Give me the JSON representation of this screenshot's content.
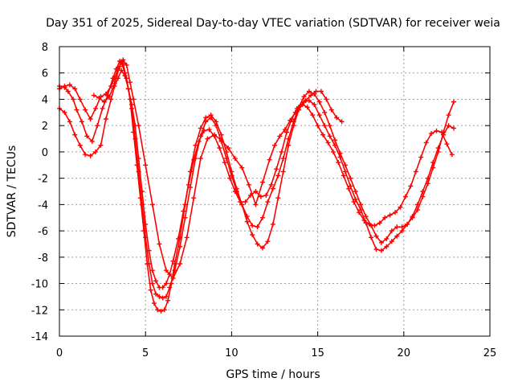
{
  "chart_data": {
    "type": "scatter",
    "title": "Day 351 of 2025, Sidereal Day-to-day VTEC variation (SDTVAR) for receiver weia",
    "xlabel": "GPS time / hours",
    "ylabel": "SDTVAR / TECUs",
    "xlim": [
      0,
      25
    ],
    "ylim": [
      -14,
      8
    ],
    "xticks": [
      0,
      5,
      10,
      15,
      20,
      25
    ],
    "yticks": [
      -14,
      -12,
      -10,
      -8,
      -6,
      -4,
      -2,
      0,
      2,
      4,
      6,
      8
    ],
    "grid": true,
    "marker": "+",
    "color": "#ff0000",
    "series": [
      {
        "name": "track-1",
        "x": [
          0.0,
          0.3,
          0.5,
          0.8,
          1.0,
          1.3,
          1.6,
          1.9,
          2.2,
          2.5,
          2.8,
          3.1,
          3.3,
          3.5,
          3.7,
          3.9,
          4.1,
          4.3,
          4.5,
          4.7,
          4.9,
          5.1,
          5.3,
          5.5,
          5.7,
          5.9,
          6.1,
          6.3,
          6.5,
          6.7,
          7.0,
          7.3,
          7.6,
          7.9,
          8.2,
          8.5,
          8.8,
          9.1,
          9.4,
          9.7,
          10.0,
          10.3,
          10.6,
          10.9,
          11.2,
          11.5,
          11.8,
          12.1,
          12.4,
          12.7,
          13.0,
          13.3,
          13.6,
          13.9,
          14.2,
          14.5,
          14.8,
          15.1,
          15.4,
          15.7,
          16.0,
          16.3,
          16.6,
          16.9,
          17.2,
          17.5,
          17.8,
          18.1,
          18.4,
          18.7,
          19.0,
          19.3,
          19.6,
          19.9,
          20.2,
          20.5,
          20.8,
          21.1,
          21.4,
          21.7,
          22.0,
          22.3,
          22.6,
          22.9
        ],
        "values": [
          5.0,
          4.9,
          4.6,
          4.0,
          3.2,
          2.3,
          1.2,
          0.8,
          2.0,
          3.3,
          4.3,
          5.6,
          6.3,
          6.9,
          6.7,
          5.6,
          4.0,
          1.5,
          -1.0,
          -3.5,
          -6.0,
          -8.5,
          -10.5,
          -11.5,
          -12.0,
          -12.1,
          -12.0,
          -11.3,
          -10.0,
          -8.5,
          -6.5,
          -4.0,
          -1.5,
          0.5,
          1.8,
          2.6,
          2.8,
          2.3,
          1.3,
          0.0,
          -1.5,
          -2.8,
          -4.0,
          -5.3,
          -6.3,
          -7.0,
          -7.3,
          -6.8,
          -5.5,
          -3.5,
          -1.5,
          0.5,
          2.0,
          3.2,
          3.8,
          3.9,
          3.6,
          2.8,
          2.0,
          1.2,
          0.5,
          -0.4,
          -1.5,
          -2.6,
          -3.6,
          -4.4,
          -5.4,
          -6.5,
          -7.4,
          -7.5,
          -7.2,
          -6.8,
          -6.4,
          -6.0,
          -5.5,
          -5.0,
          -4.4,
          -3.4,
          -2.4,
          -1.2,
          0.0,
          1.5,
          2.8,
          3.8
        ]
      },
      {
        "name": "track-2",
        "x": [
          0.0,
          0.3,
          0.6,
          0.9,
          1.2,
          1.5,
          1.8,
          2.1,
          2.4,
          2.7,
          3.0,
          3.2,
          3.4,
          3.6,
          3.8,
          4.0,
          4.2,
          4.4,
          4.6,
          4.8,
          5.0,
          5.2,
          5.4,
          5.6,
          5.8,
          6.0,
          6.2,
          6.4,
          6.7,
          7.0,
          7.3,
          7.6,
          7.9,
          8.2,
          8.5,
          8.8,
          9.1,
          9.4,
          9.7,
          10.0,
          10.3,
          10.6,
          10.9,
          11.2,
          11.5,
          11.8,
          12.1,
          12.4,
          12.7,
          13.0,
          13.3,
          13.6,
          13.9,
          14.2,
          14.5,
          14.8,
          15.1,
          15.4,
          15.7,
          16.0,
          16.3,
          16.6,
          16.9,
          17.2,
          17.5,
          17.8,
          18.1,
          18.4,
          18.7,
          19.0,
          19.3,
          19.6,
          19.9,
          20.2,
          20.5,
          20.8,
          21.1,
          21.4,
          21.7,
          22.0,
          22.3,
          22.6,
          22.9
        ],
        "values": [
          4.8,
          5.0,
          5.1,
          4.8,
          4.0,
          3.2,
          2.5,
          3.3,
          4.2,
          4.4,
          5.0,
          5.6,
          6.3,
          6.8,
          6.0,
          4.8,
          3.3,
          1.0,
          -1.5,
          -4.0,
          -6.5,
          -8.5,
          -10.0,
          -10.8,
          -11.0,
          -11.1,
          -11.0,
          -10.3,
          -9.0,
          -7.2,
          -5.0,
          -2.7,
          -0.5,
          1.2,
          2.3,
          2.6,
          2.0,
          0.8,
          -0.5,
          -1.8,
          -3.0,
          -4.0,
          -4.9,
          -5.6,
          -5.7,
          -5.0,
          -3.8,
          -2.8,
          -1.8,
          -0.5,
          1.0,
          2.3,
          3.4,
          4.2,
          4.6,
          4.4,
          3.8,
          3.0,
          2.0,
          0.9,
          -0.1,
          -1.0,
          -2.0,
          -3.0,
          -4.0,
          -4.9,
          -5.6,
          -6.4,
          -6.9,
          -6.6,
          -6.0,
          -5.7,
          -5.7,
          -5.5,
          -4.9,
          -4.0,
          -3.0,
          -2.0,
          -0.8,
          0.3,
          1.3,
          2.0,
          1.8
        ]
      },
      {
        "name": "track-3",
        "x": [
          0.0,
          0.3,
          0.6,
          0.9,
          1.2,
          1.5,
          1.8,
          2.1,
          2.4,
          2.7,
          3.0,
          3.2,
          3.4,
          3.6,
          3.8,
          4.0,
          4.2,
          4.4,
          4.6,
          4.8,
          5.0,
          5.2,
          5.4,
          5.6,
          5.8,
          6.0,
          6.2,
          6.4,
          6.6,
          6.9,
          7.2,
          7.5,
          7.8,
          8.1,
          8.4,
          8.7,
          9.0,
          9.3,
          9.6,
          9.9,
          10.2,
          10.5,
          10.8,
          11.1,
          11.4,
          11.7,
          12.0,
          12.3,
          12.6,
          12.9,
          13.2,
          13.5,
          13.8,
          14.1,
          14.4,
          14.7,
          15.0,
          15.3,
          15.6,
          15.9,
          16.2,
          16.5,
          16.8,
          17.1,
          17.4,
          17.7,
          18.0,
          18.3,
          18.6,
          18.9,
          19.2,
          19.5,
          19.8,
          20.1,
          20.4,
          20.7,
          21.0,
          21.3,
          21.6,
          21.9,
          22.2,
          22.5,
          22.8
        ],
        "values": [
          3.3,
          3.0,
          2.3,
          1.3,
          0.5,
          -0.2,
          -0.3,
          0.0,
          0.5,
          2.5,
          4.0,
          5.0,
          5.6,
          6.2,
          5.8,
          4.8,
          3.6,
          2.0,
          -0.5,
          -3.0,
          -5.5,
          -7.5,
          -9.0,
          -9.8,
          -10.3,
          -10.3,
          -10.0,
          -9.3,
          -8.3,
          -6.6,
          -4.5,
          -2.5,
          -0.6,
          0.8,
          1.6,
          1.7,
          1.2,
          0.3,
          -0.8,
          -2.0,
          -3.0,
          -3.8,
          -3.8,
          -3.3,
          -3.0,
          -3.4,
          -3.3,
          -2.5,
          -1.3,
          0.0,
          1.5,
          2.5,
          3.3,
          3.6,
          3.4,
          2.8,
          2.0,
          1.3,
          0.7,
          0.0,
          -0.8,
          -1.8,
          -2.8,
          -3.8,
          -4.6,
          -5.2,
          -5.5,
          -5.6,
          -5.4,
          -5.0,
          -4.8,
          -4.6,
          -4.2,
          -3.4,
          -2.6,
          -1.5,
          -0.4,
          0.7,
          1.4,
          1.6,
          1.5,
          0.6,
          -0.2
        ]
      },
      {
        "name": "track-4",
        "x": [
          2.0,
          2.3,
          2.6,
          2.9,
          3.2,
          3.5,
          3.7,
          3.9,
          4.1,
          4.3,
          4.6,
          5.0,
          5.4,
          5.8,
          6.2,
          6.6,
          7.0,
          7.4,
          7.8,
          8.2,
          8.6,
          9.0,
          9.4,
          9.8,
          10.2,
          10.6,
          11.0,
          11.4,
          11.8,
          12.2,
          12.5,
          12.8,
          13.1,
          13.4,
          13.7,
          14.0,
          14.3,
          14.6,
          14.9,
          15.2,
          15.5,
          15.8,
          16.1,
          16.4
        ],
        "values": [
          4.3,
          4.1,
          3.8,
          4.2,
          5.2,
          6.5,
          7.0,
          6.6,
          5.3,
          4.0,
          2.0,
          -1.0,
          -4.0,
          -7.0,
          -9.0,
          -9.6,
          -8.5,
          -6.5,
          -3.5,
          -0.5,
          1.0,
          1.3,
          0.9,
          0.3,
          -0.5,
          -1.2,
          -2.5,
          -4.0,
          -2.3,
          -0.6,
          0.5,
          1.2,
          1.7,
          2.4,
          3.0,
          3.5,
          3.9,
          4.3,
          4.6,
          4.6,
          4.0,
          3.2,
          2.6,
          2.3
        ]
      }
    ]
  }
}
